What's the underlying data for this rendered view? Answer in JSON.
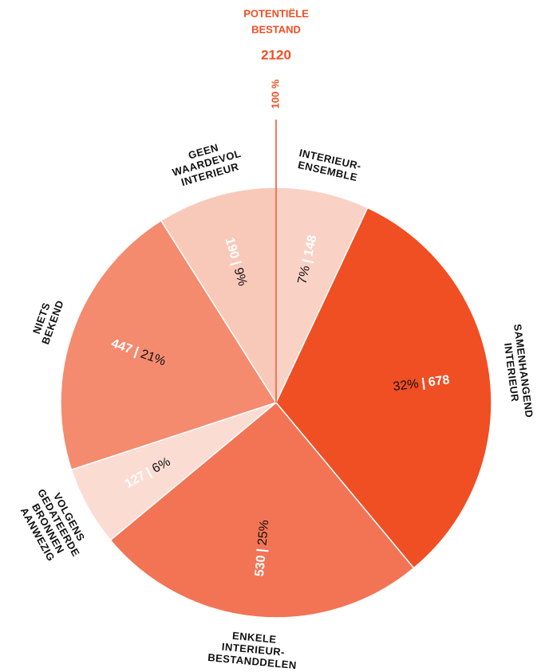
{
  "chart_data": {
    "type": "pie",
    "title": [
      "POTENTIËLE",
      "BESTAND"
    ],
    "total": 2120,
    "total_percent_label": "100 %",
    "separator": "|",
    "categories": [
      [
        "INTERIEUR-",
        "ENSEMBLE"
      ],
      [
        "SAMENHANGEND",
        "INTERIEUR"
      ],
      [
        "ENKELE",
        "INTERIEUR-",
        "BESTANDDELEN"
      ],
      [
        "VOLGENS",
        "GEDATEERDE",
        "BRONNEN",
        "AANWEZIG"
      ],
      [
        "NIETS",
        "BEKEND"
      ],
      [
        "GEEN",
        "WAARDEVOL",
        "INTERIEUR"
      ]
    ],
    "values": [
      148,
      678,
      530,
      127,
      447,
      190
    ],
    "percentage_labels": [
      "7%",
      "32%",
      "25%",
      "6%",
      "21%",
      "9%"
    ],
    "colors": [
      "#f9d2c5",
      "#f04e23",
      "#f27455",
      "#fbdcd3",
      "#f48a6e",
      "#f8c9b9"
    ],
    "accent_color": "#f04e23"
  }
}
